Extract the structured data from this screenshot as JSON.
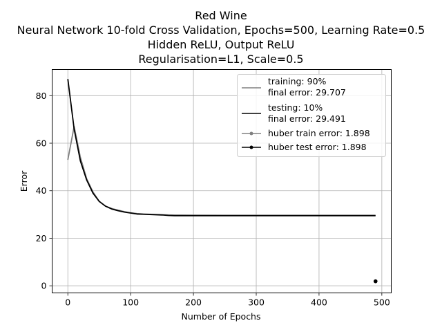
{
  "chart_data": {
    "type": "line",
    "title_lines": [
      "Red Wine",
      "Neural Network 10-fold Cross Validation, Epochs=500, Learning Rate=0.5",
      "Hidden ReLU, Output ReLU",
      "Regularisation=L1, Scale=0.5"
    ],
    "xlabel": "Number of Epochs",
    "ylabel": "Error",
    "xlim": [
      -25,
      515
    ],
    "ylim": [
      -3,
      91
    ],
    "xticks": [
      0,
      100,
      200,
      300,
      400,
      500
    ],
    "yticks": [
      0,
      20,
      40,
      60,
      80
    ],
    "grid": true,
    "legend_position": "top-right",
    "series": [
      {
        "name": "training: 90%",
        "name_line2": "final error: 29.707",
        "color": "#808080",
        "marker": "none",
        "x": [
          0,
          10,
          20,
          30,
          40,
          50,
          60,
          70,
          80,
          90,
          100,
          110,
          120,
          130,
          140,
          150,
          160,
          170,
          180,
          200,
          250,
          300,
          350,
          400,
          450,
          490
        ],
        "y": [
          53,
          67,
          54,
          45,
          39.5,
          35.5,
          33.5,
          32.5,
          31.8,
          31.2,
          30.7,
          30.4,
          30.2,
          30.1,
          30.0,
          29.9,
          29.8,
          29.75,
          29.72,
          29.71,
          29.71,
          29.71,
          29.707,
          29.707,
          29.707,
          29.707
        ]
      },
      {
        "name": "testing: 10%",
        "name_line2": "final error: 29.491",
        "color": "#000000",
        "marker": "none",
        "x": [
          0,
          10,
          20,
          30,
          40,
          50,
          60,
          70,
          80,
          90,
          100,
          110,
          120,
          130,
          140,
          150,
          160,
          170,
          180,
          200,
          250,
          300,
          350,
          400,
          450,
          490
        ],
        "y": [
          87,
          66,
          52.5,
          44.5,
          39,
          35.5,
          33.5,
          32.3,
          31.6,
          31.0,
          30.6,
          30.2,
          30.1,
          30.0,
          29.9,
          29.8,
          29.6,
          29.5,
          29.5,
          29.5,
          29.49,
          29.491,
          29.491,
          29.491,
          29.491,
          29.491
        ]
      },
      {
        "name": "huber train error: 1.898",
        "color": "#808080",
        "marker": "dot",
        "x": [
          490
        ],
        "y": [
          1.898
        ]
      },
      {
        "name": "huber test error: 1.898",
        "color": "#000000",
        "marker": "dot",
        "x": [
          490
        ],
        "y": [
          1.898
        ]
      }
    ]
  }
}
